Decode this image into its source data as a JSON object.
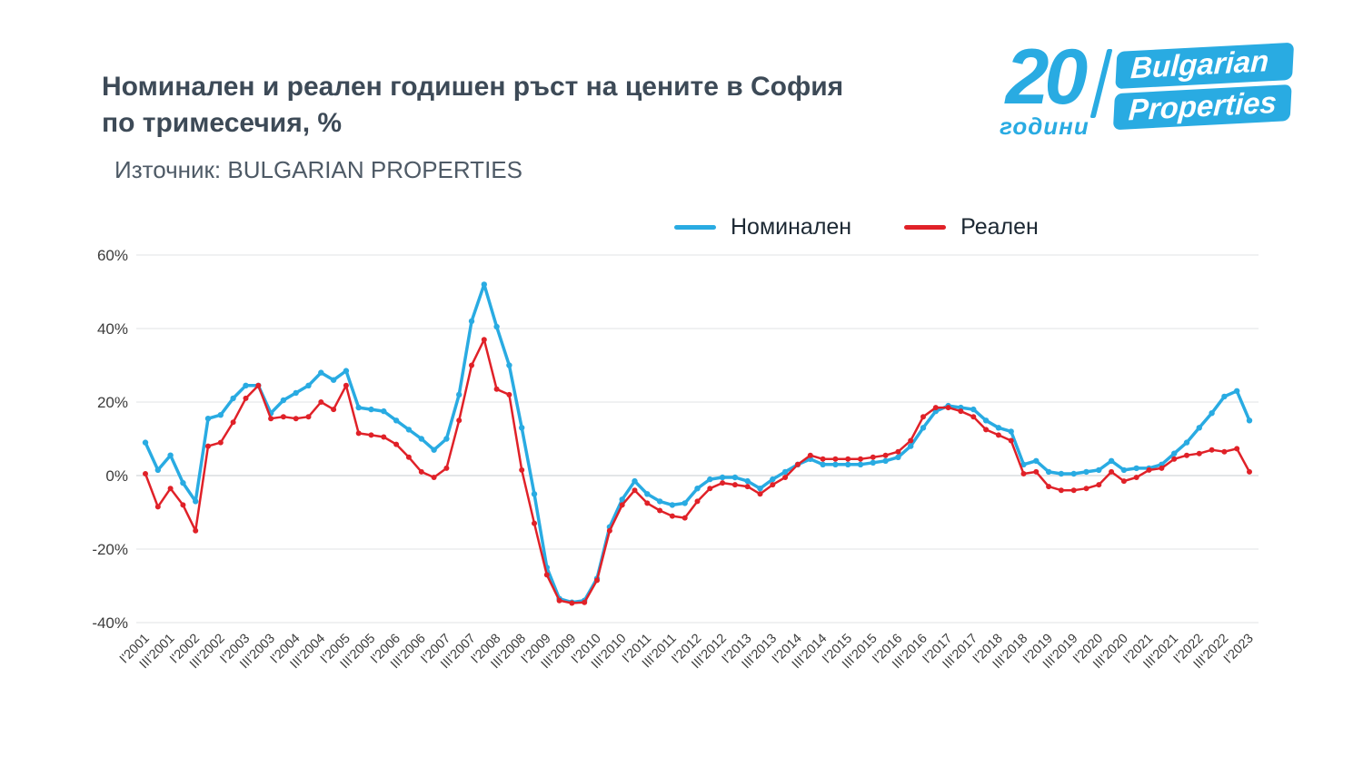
{
  "header": {
    "title_line1": "Номинален и реален годишен ръст на цените в София",
    "title_line2": "по тримесечия, %",
    "source": "Източник: BULGARIAN PROPERTIES"
  },
  "logo": {
    "number": "20",
    "years": "години",
    "brand_line1": "Bulgarian",
    "brand_line2": "Properties",
    "color": "#29abe2"
  },
  "legend": [
    {
      "label": "Номинален",
      "color": "#29abe2"
    },
    {
      "label": "Реален",
      "color": "#e02128"
    }
  ],
  "chart_data": {
    "type": "line",
    "title": "Номинален и реален годишен ръст на цените в София по тримесечия, %",
    "source": "Източник: BULGARIAN PROPERTIES",
    "legend_position": "top",
    "grid": true,
    "ylim": [
      -40,
      60
    ],
    "yticks": [
      60,
      40,
      20,
      0,
      -20,
      -40
    ],
    "ytick_labels": [
      "60%",
      "40%",
      "20%",
      "0%",
      "-20%",
      "-40%"
    ],
    "xtick_every": 2,
    "x": [
      "I'2001",
      "II'2001",
      "III'2001",
      "IV'2001",
      "I'2002",
      "II'2002",
      "III'2002",
      "IV'2002",
      "I'2003",
      "II'2003",
      "III'2003",
      "IV'2003",
      "I'2004",
      "II'2004",
      "III'2004",
      "IV'2004",
      "I'2005",
      "II'2005",
      "III'2005",
      "IV'2005",
      "I'2006",
      "II'2006",
      "III'2006",
      "IV'2006",
      "I'2007",
      "II'2007",
      "III'2007",
      "IV'2007",
      "I'2008",
      "II'2008",
      "III'2008",
      "IV'2008",
      "I'2009",
      "II'2009",
      "III'2009",
      "IV'2009",
      "I'2010",
      "II'2010",
      "III'2010",
      "IV'2010",
      "I'2011",
      "II'2011",
      "III'2011",
      "IV'2011",
      "I'2012",
      "II'2012",
      "III'2012",
      "IV'2012",
      "I'2013",
      "II'2013",
      "III'2013",
      "IV'2013",
      "I'2014",
      "II'2014",
      "III'2014",
      "IV'2014",
      "I'2015",
      "II'2015",
      "III'2015",
      "IV'2015",
      "I'2016",
      "II'2016",
      "III'2016",
      "IV'2016",
      "I'2017",
      "II'2017",
      "III'2017",
      "IV'2017",
      "I'2018",
      "II'2018",
      "III'2018",
      "IV'2018",
      "I'2019",
      "II'2019",
      "III'2019",
      "IV'2019",
      "I'2020",
      "II'2020",
      "III'2020",
      "IV'2020",
      "I'2021",
      "II'2021",
      "III'2021",
      "IV'2021",
      "I'2022",
      "II'2022",
      "III'2022",
      "IV'2022",
      "I'2023"
    ],
    "series": [
      {
        "name": "Номинален",
        "color": "#29abe2",
        "values": [
          9,
          1.5,
          5.5,
          -2,
          -7,
          15.5,
          16.5,
          21,
          24.5,
          24.5,
          17,
          20.5,
          22.5,
          24.5,
          28,
          26,
          28.5,
          18.5,
          18,
          17.5,
          15,
          12.5,
          10,
          7,
          10,
          22,
          42,
          52,
          40.5,
          30,
          13,
          -5,
          -25,
          -33.5,
          -34.5,
          -34,
          -28,
          -14,
          -6.5,
          -1.5,
          -5,
          -7,
          -8,
          -7.5,
          -3.5,
          -1,
          -0.5,
          -0.5,
          -1.5,
          -3.5,
          -1,
          1,
          3,
          4.5,
          3,
          3,
          3,
          3,
          3.5,
          4,
          5,
          8,
          13,
          17.5,
          19,
          18.5,
          18,
          15,
          13,
          12,
          3,
          4,
          1,
          0.5,
          0.5,
          1,
          1.5,
          4,
          1.5,
          2,
          2,
          3,
          6,
          9,
          13,
          17,
          21.5,
          23,
          15
        ]
      },
      {
        "name": "Реален",
        "color": "#e02128",
        "values": [
          0.5,
          -8.5,
          -3.5,
          -8,
          -15,
          8,
          9,
          14.5,
          21,
          24.5,
          15.5,
          16,
          15.5,
          16,
          20,
          18,
          24.5,
          11.5,
          11,
          10.5,
          8.5,
          5,
          1,
          -0.5,
          2,
          15,
          30,
          37,
          23.5,
          22,
          1.5,
          -13,
          -27,
          -34,
          -34.7,
          -34.5,
          -28.5,
          -15,
          -8,
          -4,
          -7.5,
          -9.5,
          -11,
          -11.5,
          -7,
          -3.5,
          -2,
          -2.5,
          -3,
          -5,
          -2.5,
          -0.5,
          3,
          5.5,
          4.5,
          4.5,
          4.5,
          4.5,
          5,
          5.5,
          6.5,
          9.5,
          16,
          18.5,
          18.5,
          17.5,
          16,
          12.5,
          11,
          9.5,
          0.5,
          1,
          -3,
          -4,
          -4,
          -3.5,
          -2.5,
          1,
          -1.5,
          -0.5,
          1.5,
          2,
          4.5,
          5.5,
          6,
          7,
          6.5,
          7.3,
          1
        ]
      }
    ]
  }
}
